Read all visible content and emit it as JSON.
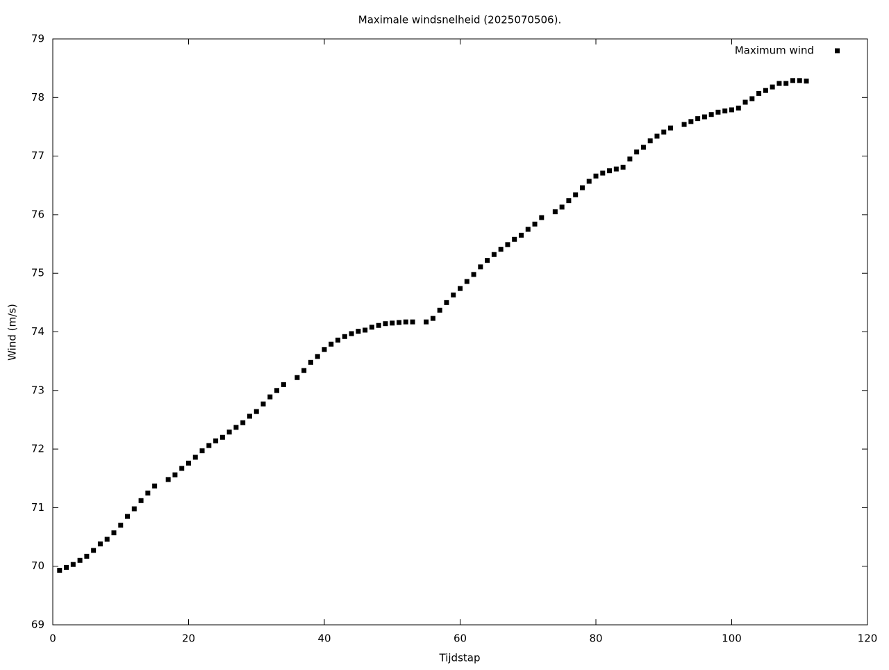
{
  "chart_data": {
    "type": "scatter",
    "title": "Maximale windsnelheid (2025070506).",
    "x_label": "Tijdstap",
    "y_label": "Wind (m/s)",
    "xlim": [
      0,
      120
    ],
    "xticks": [
      0,
      20,
      40,
      60,
      80,
      100,
      120
    ],
    "ylim": [
      69,
      79
    ],
    "yticks": [
      69,
      70,
      71,
      72,
      73,
      74,
      75,
      76,
      77,
      78,
      79
    ],
    "legend": "top-right",
    "series": [
      {
        "name": "Maximum wind",
        "color": "#000000",
        "x": [
          1,
          2,
          3,
          4,
          5,
          6,
          7,
          8,
          9,
          10,
          11,
          12,
          13,
          14,
          15,
          17,
          18,
          19,
          20,
          21,
          22,
          23,
          24,
          25,
          26,
          27,
          28,
          29,
          30,
          31,
          32,
          33,
          34,
          36,
          37,
          38,
          39,
          40,
          41,
          42,
          43,
          44,
          45,
          46,
          47,
          48,
          49,
          50,
          51,
          52,
          53,
          55,
          56,
          57,
          58,
          59,
          60,
          61,
          62,
          63,
          64,
          65,
          66,
          67,
          68,
          69,
          70,
          71,
          72,
          74,
          75,
          76,
          77,
          78,
          79,
          80,
          81,
          82,
          83,
          84,
          85,
          86,
          87,
          88,
          89,
          90,
          91,
          93,
          94,
          95,
          96,
          97,
          98,
          99,
          100,
          101,
          102,
          103,
          104,
          105,
          106,
          107,
          108,
          109,
          110,
          111
        ],
        "values": [
          69.93,
          69.98,
          70.03,
          70.1,
          70.17,
          70.27,
          70.38,
          70.46,
          70.57,
          70.7,
          70.85,
          70.98,
          71.12,
          71.25,
          71.37,
          71.48,
          71.56,
          71.67,
          71.76,
          71.86,
          71.97,
          72.06,
          72.14,
          72.2,
          72.29,
          72.37,
          72.45,
          72.56,
          72.64,
          72.77,
          72.89,
          73.0,
          73.1,
          73.22,
          73.34,
          73.48,
          73.58,
          73.7,
          73.79,
          73.86,
          73.92,
          73.97,
          74.01,
          74.03,
          74.08,
          74.11,
          74.14,
          74.15,
          74.16,
          74.17,
          74.17,
          74.17,
          74.23,
          74.37,
          74.5,
          74.63,
          74.74,
          74.86,
          74.98,
          75.11,
          75.22,
          75.32,
          75.41,
          75.49,
          75.58,
          75.65,
          75.75,
          75.84,
          75.95,
          76.05,
          76.13,
          76.24,
          76.34,
          76.46,
          76.57,
          76.66,
          76.71,
          76.75,
          76.78,
          76.81,
          76.95,
          77.07,
          77.15,
          77.26,
          77.34,
          77.41,
          77.48,
          77.54,
          77.59,
          77.64,
          77.67,
          77.71,
          77.75,
          77.77,
          77.79,
          77.82,
          77.92,
          77.98,
          78.07,
          78.12,
          78.18,
          78.24,
          78.24,
          78.29,
          78.29,
          78.28
        ]
      }
    ]
  }
}
